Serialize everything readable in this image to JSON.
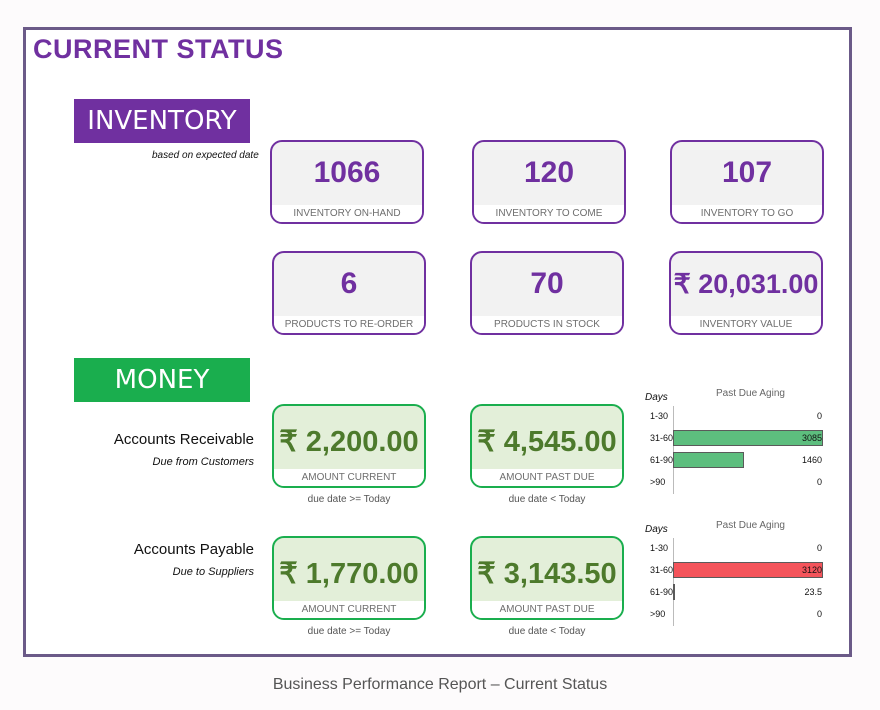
{
  "title": "CURRENT STATUS",
  "inventory": {
    "banner": "INVENTORY",
    "note": "based on expected date",
    "kpis": [
      {
        "value": "1066",
        "label": "INVENTORY ON-HAND"
      },
      {
        "value": "120",
        "label": "INVENTORY TO COME"
      },
      {
        "value": "107",
        "label": "INVENTORY TO GO"
      },
      {
        "value": "6",
        "label": "PRODUCTS TO RE-ORDER"
      },
      {
        "value": "70",
        "label": "PRODUCTS IN STOCK"
      },
      {
        "value": "₹ 20,031.00",
        "label": "INVENTORY VALUE"
      }
    ]
  },
  "money": {
    "banner": "MONEY",
    "receivable": {
      "title": "Accounts Receivable",
      "subtitle": "Due from Customers",
      "current": {
        "value": "₹ 2,200.00",
        "label": "AMOUNT CURRENT",
        "note": "due date >= Today"
      },
      "past_due": {
        "value": "₹ 4,545.00",
        "label": "AMOUNT PAST DUE",
        "note": "due date < Today"
      },
      "aging": {
        "days_label": "Days",
        "title": "Past Due Aging",
        "color": "#5dbe7e",
        "buckets": [
          {
            "label": "1-30",
            "value": 0,
            "display": "0"
          },
          {
            "label": "31-60",
            "value": 3085,
            "display": "3085"
          },
          {
            "label": "61-90",
            "value": 1460,
            "display": "1460"
          },
          {
            "label": ">90",
            "value": 0,
            "display": "0"
          }
        ]
      }
    },
    "payable": {
      "title": "Accounts Payable",
      "subtitle": "Due to Suppliers",
      "current": {
        "value": "₹ 1,770.00",
        "label": "AMOUNT CURRENT",
        "note": "due date >= Today"
      },
      "past_due": {
        "value": "₹ 3,143.50",
        "label": "AMOUNT PAST DUE",
        "note": "due date < Today"
      },
      "aging": {
        "days_label": "Days",
        "title": "Past Due Aging",
        "color": "#f4545b",
        "buckets": [
          {
            "label": "1-30",
            "value": 0,
            "display": "0"
          },
          {
            "label": "31-60",
            "value": 3120,
            "display": "3120"
          },
          {
            "label": "61-90",
            "value": 23.5,
            "display": "23.5"
          },
          {
            "label": ">90",
            "value": 0,
            "display": "0"
          }
        ]
      }
    }
  },
  "caption": "Business Performance Report – Current Status",
  "colors": {
    "purple": "#7030a0",
    "green": "#1aae4e",
    "value_green": "#4d7a2c"
  }
}
